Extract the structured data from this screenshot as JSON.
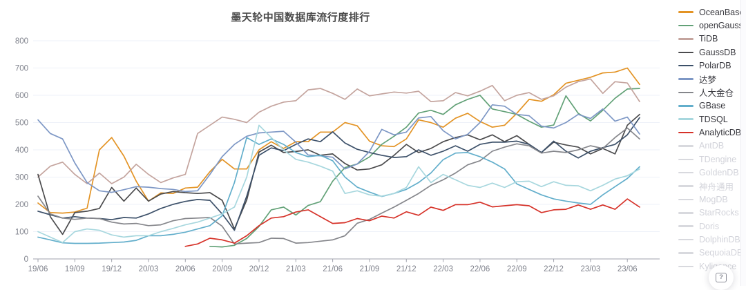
{
  "title": "墨天轮中国数据库流行度排行",
  "help_button": {
    "icon": "question-mark-in-square",
    "label": "?"
  },
  "chart_data": {
    "type": "line",
    "title": "墨天轮中国数据库流行度排行",
    "x_unit": "month (YY/MM)",
    "x": [
      "19/06",
      "19/07",
      "19/08",
      "19/09",
      "19/10",
      "19/11",
      "19/12",
      "20/01",
      "20/02",
      "20/03",
      "20/04",
      "20/05",
      "20/06",
      "20/07",
      "20/08",
      "20/09",
      "20/10",
      "20/11",
      "20/12",
      "21/01",
      "21/02",
      "21/03",
      "21/04",
      "21/05",
      "21/06",
      "21/07",
      "21/08",
      "21/09",
      "21/10",
      "21/11",
      "21/12",
      "22/01",
      "22/02",
      "22/03",
      "22/04",
      "22/05",
      "22/06",
      "22/07",
      "22/08",
      "22/09",
      "22/10",
      "22/11",
      "22/12",
      "23/01",
      "23/02",
      "23/03",
      "23/04",
      "23/05",
      "23/06",
      "23/07"
    ],
    "x_tick_labels": [
      "19/06",
      "19/09",
      "19/12",
      "20/03",
      "20/06",
      "20/09",
      "20/12",
      "21/03",
      "21/06",
      "21/09",
      "21/12",
      "22/03",
      "22/06",
      "22/09",
      "22/12",
      "23/03",
      "23/06"
    ],
    "ylim": [
      0,
      800
    ],
    "y_ticks": [
      0,
      100,
      200,
      300,
      400,
      500,
      600,
      700,
      800
    ],
    "grid": true,
    "legend_position": "right",
    "axis_color": "#9fa2ac",
    "grid_color": "#edf1f8",
    "tick_label_color": "#7f828c",
    "series": [
      {
        "name": "OceanBase",
        "color": "#e39324",
        "values": [
          205,
          170,
          168,
          172,
          186,
          400,
          445,
          377,
          285,
          212,
          242,
          240,
          260,
          263,
          320,
          365,
          330,
          330,
          400,
          430,
          405,
          430,
          430,
          465,
          465,
          500,
          488,
          432,
          415,
          412,
          440,
          510,
          500,
          483,
          516,
          534,
          504,
          483,
          490,
          534,
          585,
          578,
          602,
          644,
          655,
          666,
          682,
          685,
          700,
          640
        ]
      },
      {
        "name": "openGauss",
        "color": "#62a177",
        "values": [
          null,
          null,
          null,
          null,
          null,
          null,
          null,
          null,
          null,
          null,
          null,
          null,
          null,
          null,
          46,
          44,
          50,
          75,
          119,
          180,
          190,
          161,
          196,
          210,
          285,
          335,
          348,
          374,
          420,
          450,
          483,
          535,
          545,
          530,
          565,
          585,
          600,
          550,
          540,
          530,
          505,
          483,
          491,
          598,
          534,
          506,
          545,
          589,
          623,
          625
        ]
      },
      {
        "name": "TiDB",
        "color": "#c4a49e",
        "values": [
          300,
          340,
          355,
          310,
          276,
          315,
          276,
          300,
          347,
          310,
          280,
          297,
          310,
          460,
          490,
          520,
          512,
          500,
          538,
          560,
          575,
          580,
          620,
          625,
          607,
          585,
          623,
          598,
          605,
          612,
          608,
          615,
          577,
          580,
          610,
          598,
          615,
          636,
          580,
          600,
          610,
          585,
          598,
          630,
          650,
          660,
          607,
          650,
          645,
          577
        ]
      },
      {
        "name": "GaussDB",
        "color": "#4b4b4d",
        "values": [
          310,
          155,
          90,
          170,
          175,
          185,
          262,
          212,
          260,
          212,
          238,
          247,
          243,
          240,
          243,
          215,
          110,
          216,
          392,
          417,
          390,
          394,
          400,
          380,
          385,
          350,
          326,
          330,
          345,
          380,
          420,
          390,
          405,
          430,
          445,
          455,
          437,
          455,
          430,
          452,
          420,
          390,
          428,
          418,
          410,
          385,
          405,
          385,
          490,
          530
        ]
      },
      {
        "name": "PolarDB",
        "color": "#3c5069",
        "values": [
          175,
          162,
          150,
          155,
          150,
          148,
          144,
          152,
          150,
          165,
          185,
          200,
          211,
          218,
          215,
          165,
          105,
          230,
          380,
          407,
          397,
          420,
          440,
          430,
          466,
          425,
          402,
          390,
          380,
          372,
          375,
          400,
          380,
          395,
          415,
          395,
          420,
          428,
          428,
          432,
          420,
          390,
          432,
          395,
          370,
          395,
          408,
          420,
          455,
          518
        ]
      },
      {
        "name": "达梦",
        "color": "#7d97c5",
        "values": [
          510,
          460,
          440,
          352,
          280,
          250,
          244,
          254,
          265,
          263,
          258,
          255,
          247,
          250,
          310,
          375,
          420,
          450,
          462,
          465,
          468,
          428,
          381,
          378,
          373,
          330,
          348,
          394,
          475,
          455,
          465,
          517,
          522,
          470,
          440,
          457,
          500,
          565,
          560,
          530,
          525,
          487,
          480,
          500,
          530,
          515,
          550,
          505,
          520,
          458
        ]
      },
      {
        "name": "人大金仓",
        "color": "#85868b",
        "values": [
          230,
          165,
          150,
          145,
          150,
          148,
          135,
          128,
          130,
          122,
          125,
          140,
          148,
          150,
          152,
          120,
          55,
          58,
          60,
          76,
          75,
          58,
          60,
          65,
          70,
          85,
          131,
          145,
          168,
          190,
          215,
          240,
          270,
          290,
          315,
          345,
          360,
          395,
          410,
          422,
          415,
          388,
          395,
          390,
          400,
          415,
          405,
          445,
          480,
          440
        ]
      },
      {
        "name": "GBase",
        "color": "#62aecb",
        "values": [
          80,
          70,
          59,
          57,
          57,
          58,
          60,
          62,
          68,
          85,
          85,
          90,
          98,
          110,
          122,
          158,
          280,
          445,
          420,
          440,
          420,
          390,
          375,
          380,
          360,
          300,
          263,
          245,
          229,
          240,
          255,
          280,
          315,
          364,
          388,
          390,
          375,
          355,
          330,
          275,
          255,
          235,
          220,
          212,
          205,
          200,
          235,
          265,
          295,
          338
        ]
      },
      {
        "name": "TDSQL",
        "color": "#a7d7de",
        "values": [
          100,
          80,
          60,
          100,
          110,
          105,
          88,
          80,
          85,
          85,
          100,
          112,
          125,
          135,
          150,
          165,
          190,
          300,
          490,
          445,
          400,
          365,
          355,
          340,
          322,
          240,
          250,
          235,
          230,
          240,
          262,
          338,
          280,
          310,
          290,
          270,
          262,
          278,
          262,
          283,
          285,
          265,
          283,
          270,
          268,
          250,
          270,
          293,
          305,
          330
        ]
      },
      {
        "name": "AnalyticDB",
        "color": "#d63229",
        "values": [
          null,
          null,
          null,
          null,
          null,
          null,
          null,
          null,
          null,
          null,
          null,
          null,
          46,
          55,
          76,
          70,
          58,
          85,
          122,
          150,
          155,
          172,
          180,
          155,
          130,
          133,
          148,
          140,
          157,
          150,
          173,
          160,
          190,
          178,
          199,
          199,
          208,
          191,
          195,
          199,
          195,
          170,
          180,
          182,
          198,
          182,
          198,
          182,
          220,
          190
        ]
      }
    ],
    "disabled_series": [
      {
        "name": "AntDB",
        "color": "#d8d9de"
      },
      {
        "name": "TDengine",
        "color": "#d8d9de"
      },
      {
        "name": "GoldenDB",
        "color": "#d8d9de"
      },
      {
        "name": "神舟通用",
        "color": "#d8d9de"
      },
      {
        "name": "MogDB",
        "color": "#d8d9de"
      },
      {
        "name": "StarRocks",
        "color": "#d8d9de"
      },
      {
        "name": "Doris",
        "color": "#d8d9de"
      },
      {
        "name": "DolphinDB",
        "color": "#d8d9de"
      },
      {
        "name": "SequoiaDB",
        "color": "#d8d9de"
      },
      {
        "name": "Kyligence",
        "color": "#d8d9de"
      }
    ]
  }
}
